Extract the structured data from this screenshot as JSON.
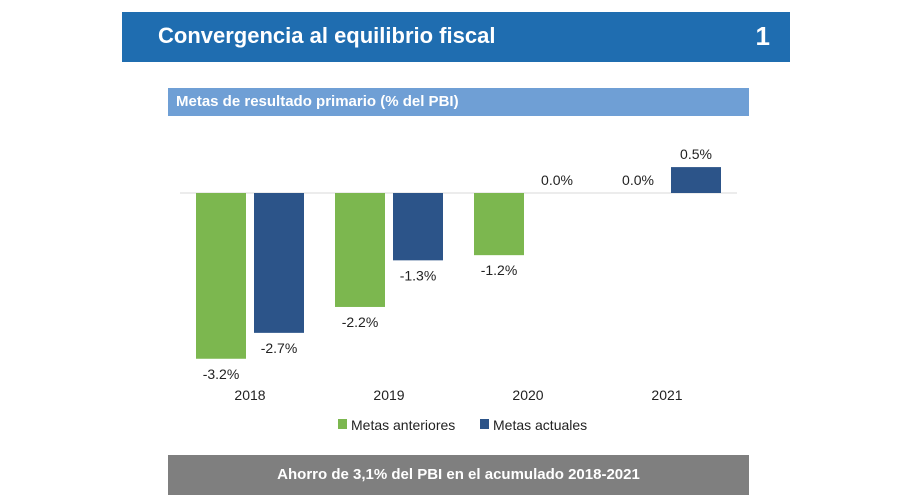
{
  "header": {
    "title": "Convergencia al equilibrio fiscal",
    "number": "1"
  },
  "footer": {
    "text": "Ahorro de 3,1% del PBI en el acumulado 2018-2021"
  },
  "chart_data": {
    "type": "bar",
    "title": "Metas de resultado primario (% del PBI)",
    "categories": [
      "2018",
      "2019",
      "2020",
      "2021"
    ],
    "series": [
      {
        "name": "Metas anteriores",
        "color": "#7cb74f",
        "values": [
          -3.2,
          -2.2,
          -1.2,
          0.0
        ],
        "labels": [
          "-3.2%",
          "-2.2%",
          "-1.2%",
          "0.0%"
        ]
      },
      {
        "name": "Metas actuales",
        "color": "#2c5489",
        "values": [
          -2.7,
          -1.3,
          0.0,
          0.5
        ],
        "labels": [
          "-2.7%",
          "-1.3%",
          "0.0%",
          "0.5%"
        ]
      }
    ],
    "ylim": [
      -3.2,
      0.5
    ],
    "grid": false,
    "legend": "bottom"
  }
}
